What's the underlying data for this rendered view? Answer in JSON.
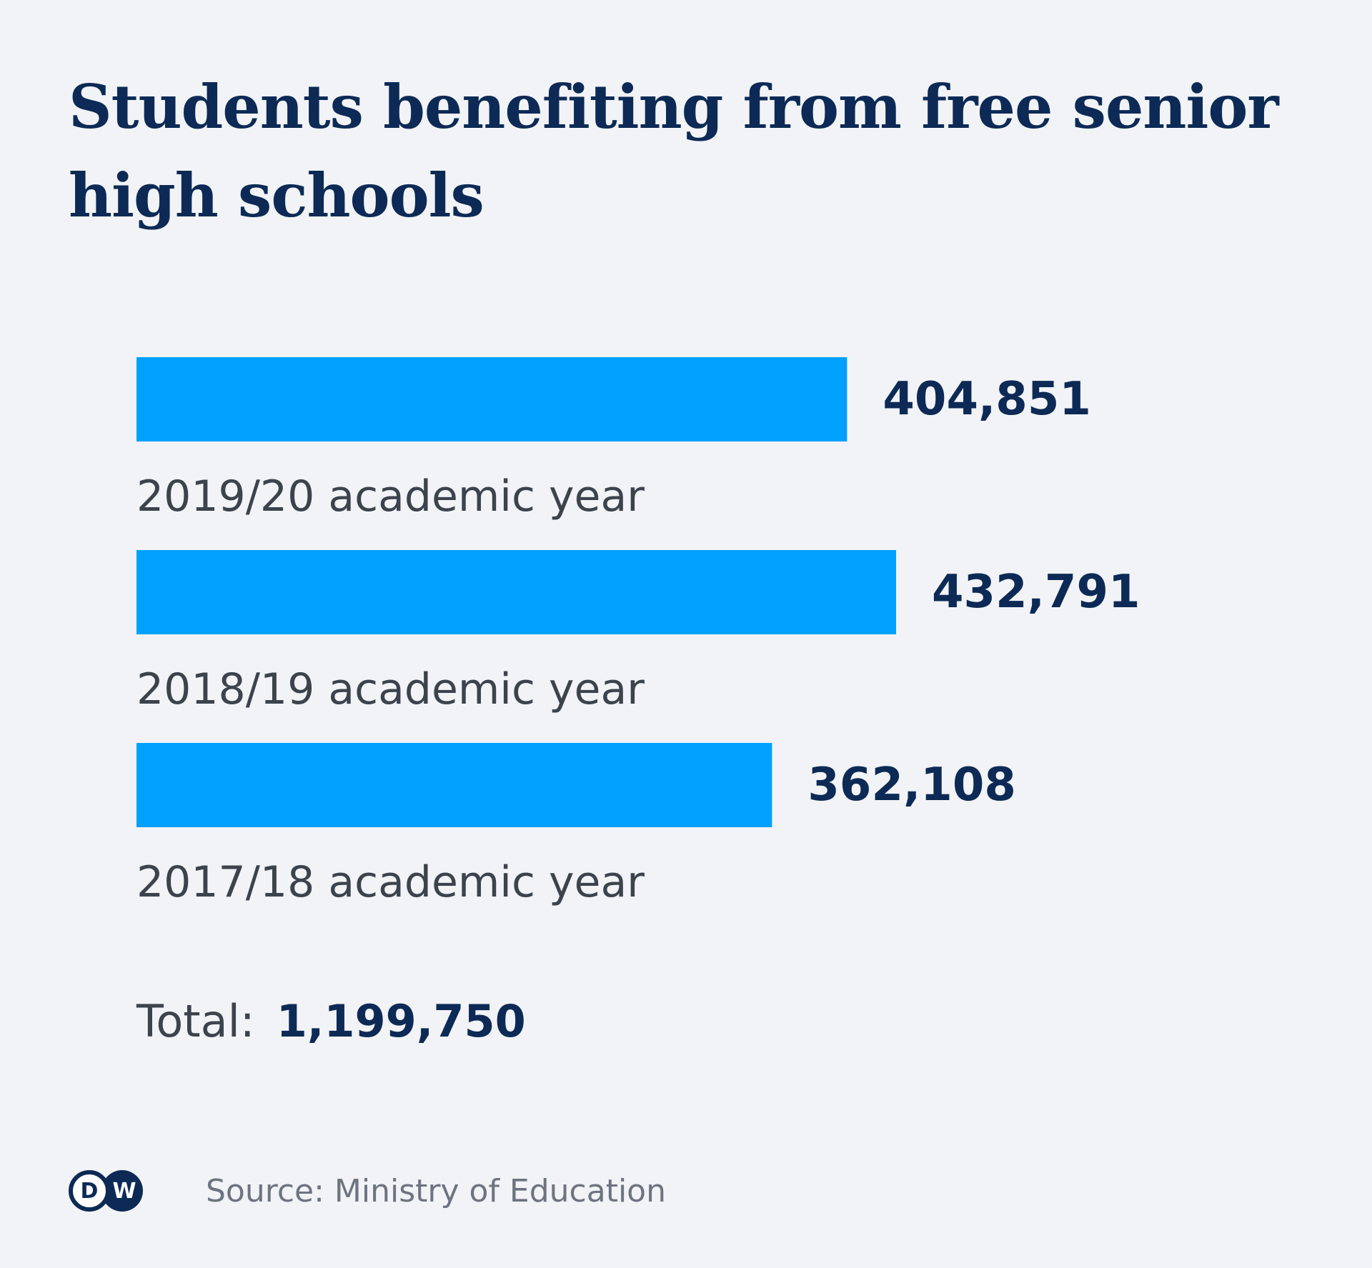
{
  "colors": {
    "background": "#f2f3f6",
    "bar": "#00a0ff",
    "title": "#0c2a55",
    "value": "#0c2a55",
    "label": "#3c434d",
    "source": "#6d7380"
  },
  "chart_data": {
    "type": "bar",
    "orientation": "horizontal",
    "title": "Students benefiting from free senior high schools",
    "categories": [
      "2019/20 academic year",
      "2018/19 academic year",
      "2017/18 academic year"
    ],
    "values": [
      404851,
      432791,
      362108
    ],
    "value_labels": [
      "404,851",
      "432,791",
      "362,108"
    ],
    "grid": false,
    "axes_visible": false,
    "legend": "none"
  },
  "total": {
    "label": "Total:",
    "value": "1,199,750"
  },
  "footer": {
    "logo_letters": [
      "D",
      "W"
    ],
    "source": "Source: Ministry of Education"
  }
}
